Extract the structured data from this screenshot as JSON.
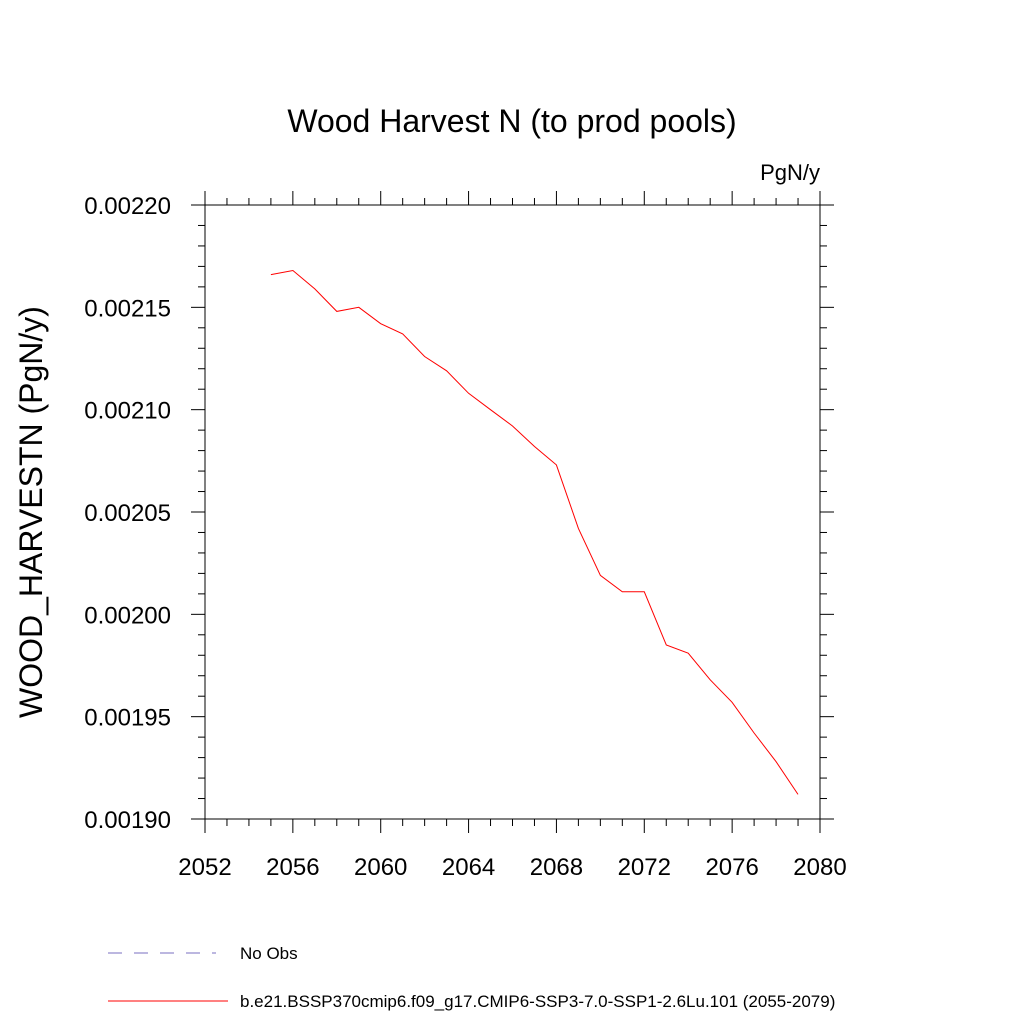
{
  "chart_data": {
    "type": "line",
    "title": "Wood Harvest N (to prod pools)",
    "units": "PgN/y",
    "ylabel": "WOOD_HARVESTN  (PgN/y)",
    "xlabel": "",
    "xlim": [
      2052,
      2080
    ],
    "ylim": [
      0.0019,
      0.0022
    ],
    "x_ticks": [
      "2052",
      "2056",
      "2060",
      "2064",
      "2068",
      "2072",
      "2076",
      "2080"
    ],
    "y_ticks": [
      "0.00190",
      "0.00195",
      "0.00200",
      "0.00205",
      "0.00210",
      "0.00215",
      "0.00220"
    ],
    "grid": false,
    "legend_position": "bottom",
    "series": [
      {
        "name": "No Obs",
        "color": "#7a6fc0",
        "style": "dashed",
        "x": [],
        "y": []
      },
      {
        "name": "b.e21.BSSP370cmip6.f09_g17.CMIP6-SSP3-7.0-SSP1-2.6Lu.101 (2055-2079)",
        "color": "#ff0000",
        "style": "solid",
        "x": [
          2055,
          2056,
          2057,
          2058,
          2059,
          2060,
          2061,
          2062,
          2063,
          2064,
          2065,
          2066,
          2067,
          2068,
          2069,
          2070,
          2071,
          2072,
          2073,
          2074,
          2075,
          2076,
          2077,
          2078,
          2079
        ],
        "y": [
          0.002166,
          0.002168,
          0.002159,
          0.002148,
          0.00215,
          0.002142,
          0.002137,
          0.002126,
          0.002119,
          0.002108,
          0.0021,
          0.002092,
          0.002082,
          0.002073,
          0.002042,
          0.002019,
          0.002011,
          0.002011,
          0.001985,
          0.001981,
          0.001968,
          0.001957,
          0.001942,
          0.001928,
          0.001912
        ]
      }
    ]
  }
}
